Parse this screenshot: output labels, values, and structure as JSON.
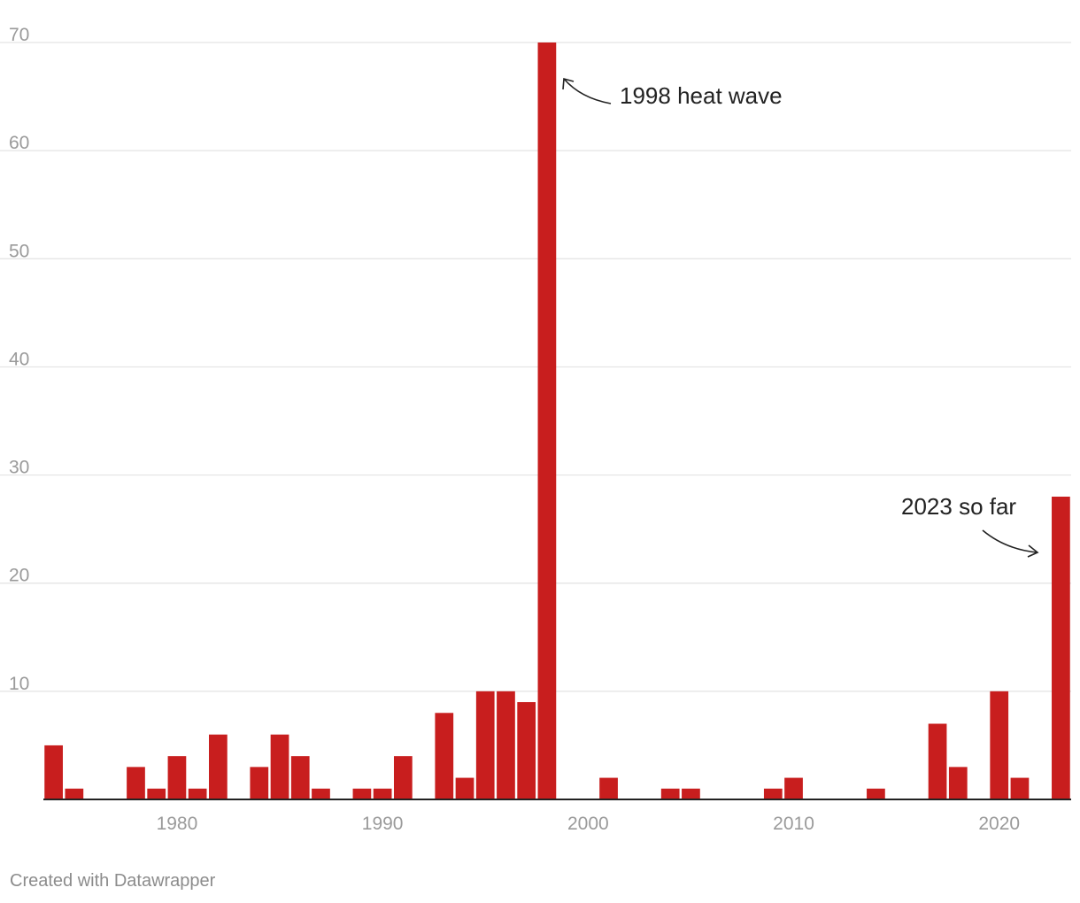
{
  "colors": {
    "bar": "#c81e1e",
    "grid": "#e3e3e3",
    "axis": "#222222",
    "tick": "#9a9a9a"
  },
  "chart_data": {
    "type": "bar",
    "title": "",
    "xlabel": "",
    "ylabel": "",
    "ylim": [
      0,
      70
    ],
    "xlim": [
      1974,
      2023
    ],
    "yticks": [
      10,
      20,
      30,
      40,
      50,
      60,
      70
    ],
    "xticks": [
      1980,
      1990,
      2000,
      2010,
      2020
    ],
    "grid": true,
    "legend": "none",
    "x": [
      1974,
      1975,
      1976,
      1977,
      1978,
      1979,
      1980,
      1981,
      1982,
      1983,
      1984,
      1985,
      1986,
      1987,
      1988,
      1989,
      1990,
      1991,
      1992,
      1993,
      1994,
      1995,
      1996,
      1997,
      1998,
      1999,
      2000,
      2001,
      2002,
      2003,
      2004,
      2005,
      2006,
      2007,
      2008,
      2009,
      2010,
      2011,
      2012,
      2013,
      2014,
      2015,
      2016,
      2017,
      2018,
      2019,
      2020,
      2021,
      2022,
      2023
    ],
    "values": [
      5,
      1,
      0,
      0,
      3,
      1,
      4,
      1,
      6,
      0,
      3,
      6,
      4,
      1,
      0,
      1,
      1,
      4,
      0,
      8,
      2,
      10,
      10,
      9,
      70,
      0,
      0,
      2,
      0,
      0,
      1,
      1,
      0,
      0,
      0,
      1,
      2,
      0,
      0,
      0,
      1,
      0,
      0,
      7,
      3,
      0,
      10,
      2,
      0,
      28
    ],
    "annotations": [
      {
        "text": "1998 heat wave",
        "target_year": 1998
      },
      {
        "text": "2023 so far",
        "target_year": 2023
      }
    ]
  },
  "footer": {
    "credit": "Created with Datawrapper"
  }
}
